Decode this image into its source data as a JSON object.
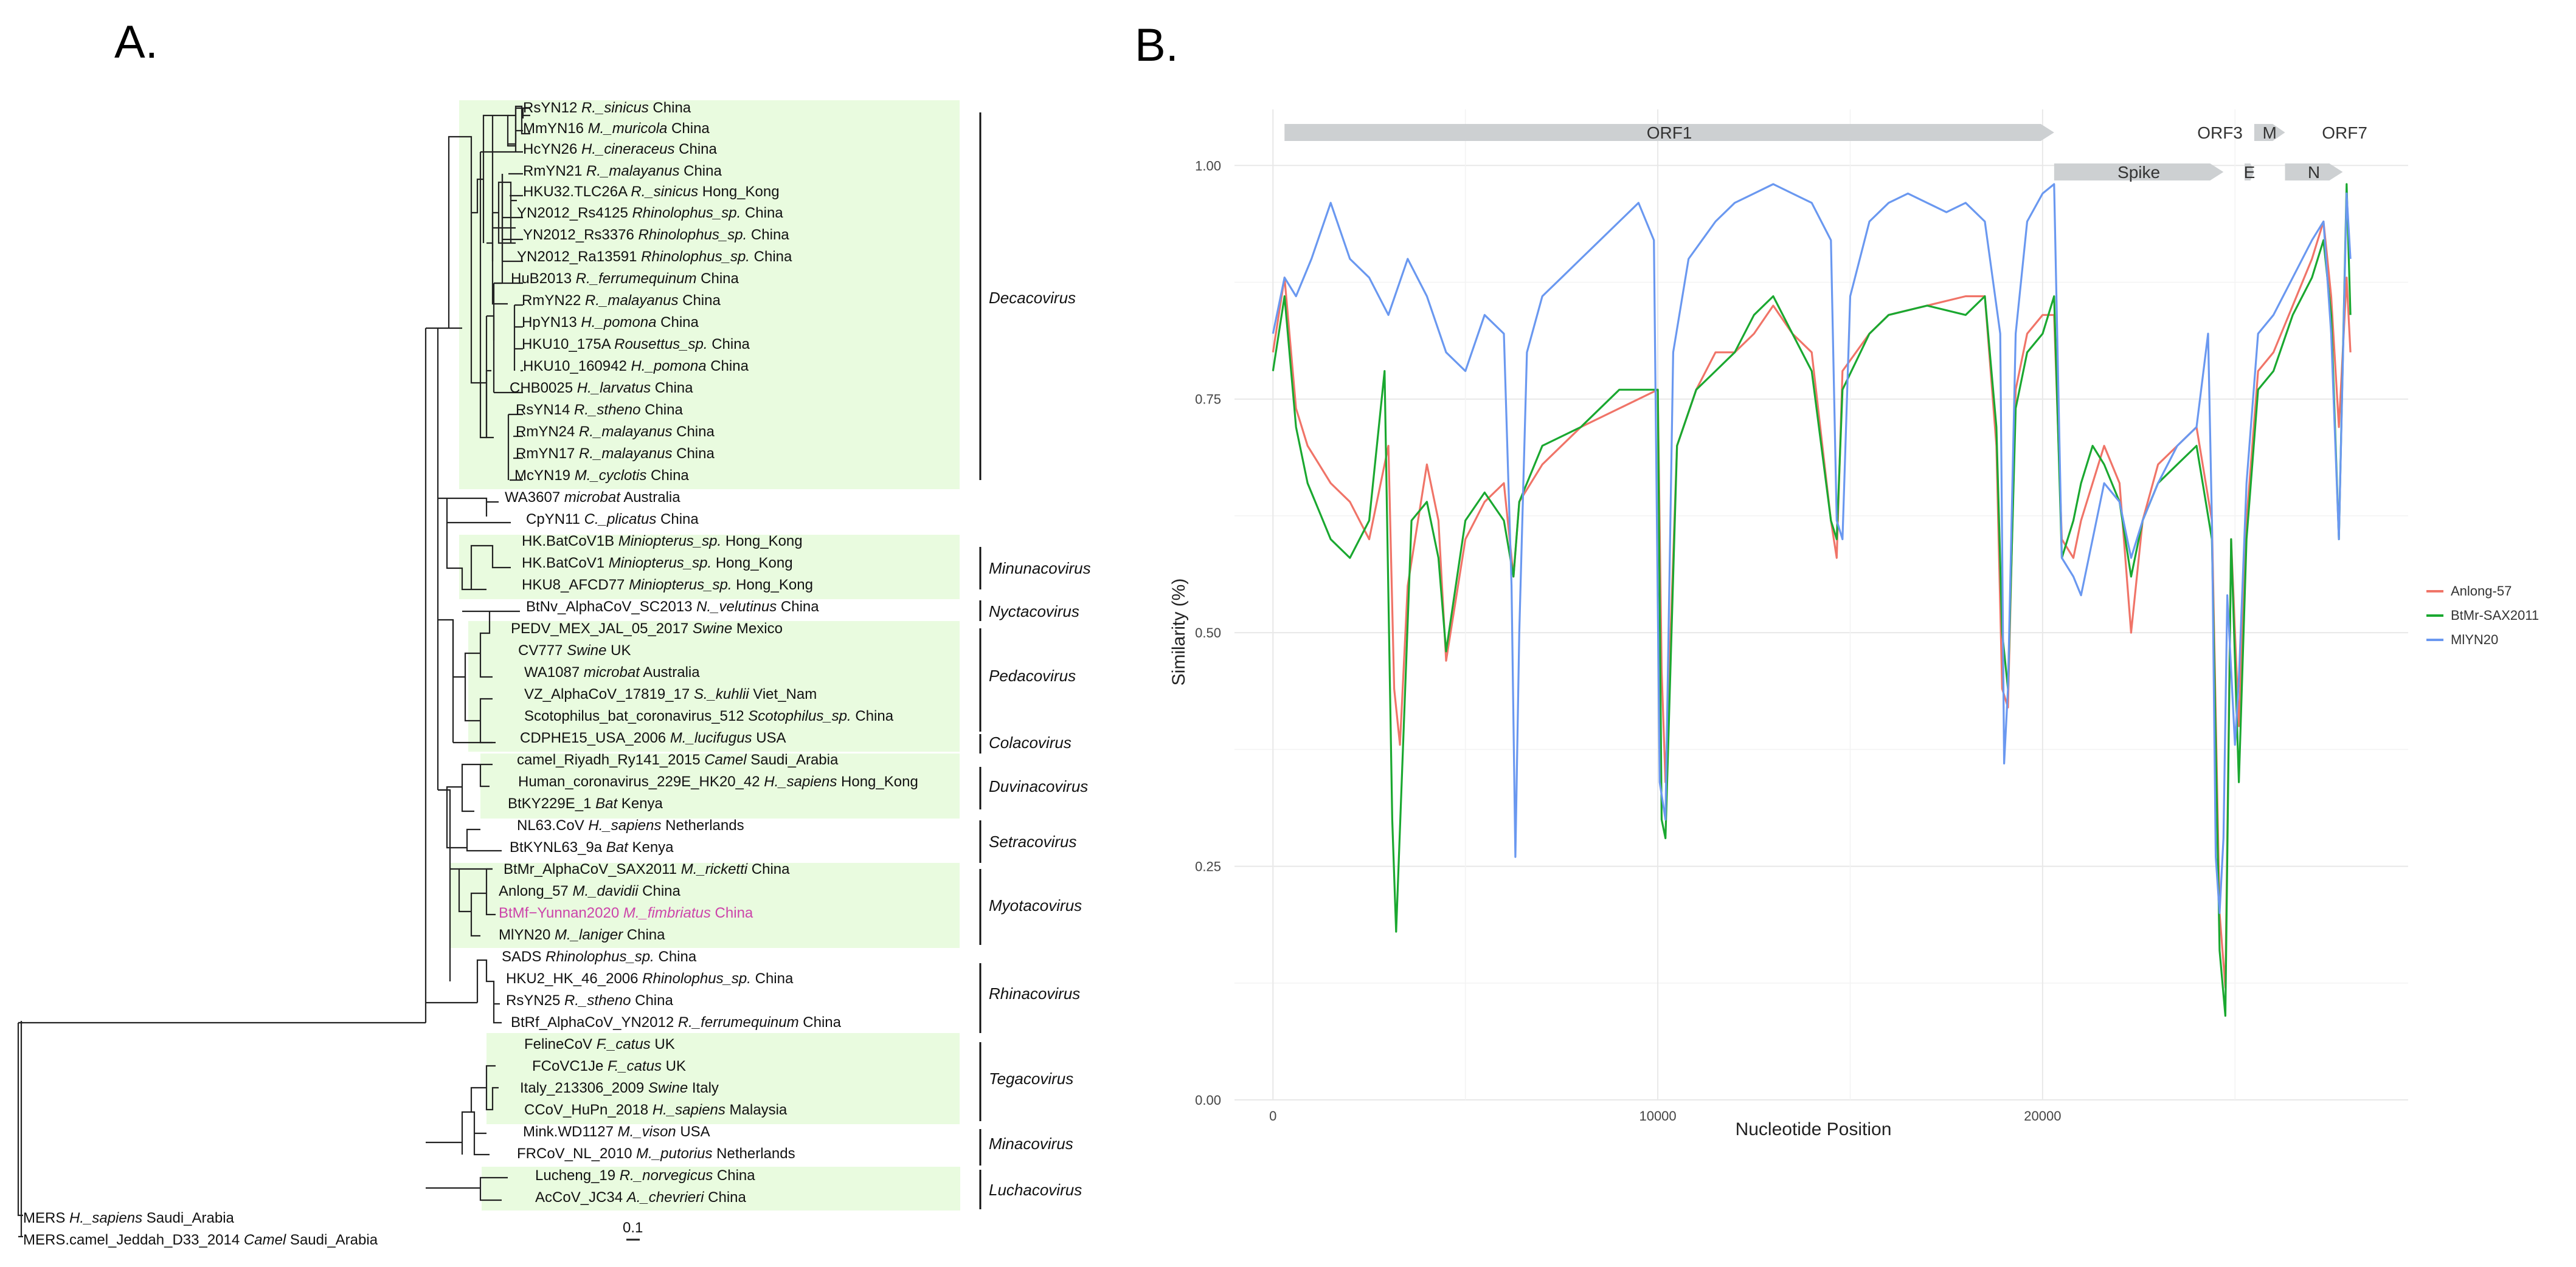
{
  "panel_labels": {
    "a": "A.",
    "b": "B."
  },
  "tree": {
    "scale_label": "0.1",
    "tips": [
      {
        "id": "rsyn12",
        "name": "RsYN12",
        "species": "R._sinicus",
        "loc": "China"
      },
      {
        "id": "mmyn16",
        "name": "MmYN16",
        "species": "M._muricola",
        "loc": "China"
      },
      {
        "id": "hcyn26",
        "name": "HcYN26",
        "species": "H._cineraceus",
        "loc": "China"
      },
      {
        "id": "rmyn21",
        "name": "RmYN21",
        "species": "R._malayanus",
        "loc": "China"
      },
      {
        "id": "hku32",
        "name": "HKU32.TLC26A",
        "species": "R._sinicus",
        "loc": "Hong_Kong"
      },
      {
        "id": "yn2012_rs4125",
        "name": "YN2012_Rs4125",
        "species": "Rhinolophus_sp.",
        "loc": "China"
      },
      {
        "id": "yn2012_rs3376",
        "name": "YN2012_Rs3376",
        "species": "Rhinolophus_sp.",
        "loc": "China"
      },
      {
        "id": "yn2012_ra13591",
        "name": "YN2012_Ra13591",
        "species": "Rhinolophus_sp.",
        "loc": "China"
      },
      {
        "id": "hub2013",
        "name": "HuB2013",
        "species": "R._ferrumequinum",
        "loc": "China"
      },
      {
        "id": "rmyn22",
        "name": "RmYN22",
        "species": "R._malayanus",
        "loc": "China"
      },
      {
        "id": "hpyn13",
        "name": "HpYN13",
        "species": "H._pomona",
        "loc": "China"
      },
      {
        "id": "hku10_175a",
        "name": "HKU10_175A",
        "species": "Rousettus_sp.",
        "loc": "China"
      },
      {
        "id": "hku10_160942",
        "name": "HKU10_160942",
        "species": "H._pomona",
        "loc": "China"
      },
      {
        "id": "chb0025",
        "name": "CHB0025",
        "species": "H._larvatus",
        "loc": "China"
      },
      {
        "id": "rsyn14",
        "name": "RsYN14",
        "species": "R._stheno",
        "loc": "China"
      },
      {
        "id": "rmyn24",
        "name": "RmYN24",
        "species": "R._malayanus",
        "loc": "China"
      },
      {
        "id": "rmyn17",
        "name": "RmYN17",
        "species": "R._malayanus",
        "loc": "China"
      },
      {
        "id": "mcyn19",
        "name": "McYN19",
        "species": "M._cyclotis",
        "loc": "China"
      },
      {
        "id": "wa3607",
        "name": "WA3607",
        "species": "microbat",
        "loc": "Australia"
      },
      {
        "id": "cpyn11",
        "name": "CpYN11",
        "species": "C._plicatus",
        "loc": "China"
      },
      {
        "id": "hkbat1b",
        "name": "HK.BatCoV1B",
        "species": "Miniopterus_sp.",
        "loc": "Hong_Kong"
      },
      {
        "id": "hkbat1",
        "name": "HK.BatCoV1",
        "species": "Miniopterus_sp.",
        "loc": "Hong_Kong"
      },
      {
        "id": "hku8",
        "name": "HKU8_AFCD77",
        "species": "Miniopterus_sp.",
        "loc": "Hong_Kong"
      },
      {
        "id": "btnv",
        "name": "BtNv_AlphaCoV_SC2013",
        "species": "N._velutinus",
        "loc": "China"
      },
      {
        "id": "pedv",
        "name": "PEDV_MEX_JAL_05_2017",
        "species": "Swine",
        "loc": "Mexico"
      },
      {
        "id": "cv777",
        "name": "CV777",
        "species": "Swine",
        "loc": "UK"
      },
      {
        "id": "wa1087",
        "name": "WA1087",
        "species": "microbat",
        "loc": "Australia"
      },
      {
        "id": "vz",
        "name": "VZ_AlphaCoV_17819_17",
        "species": "S._kuhlii",
        "loc": "Viet_Nam"
      },
      {
        "id": "scoto",
        "name": "Scotophilus_bat_coronavirus_512",
        "species": "Scotophilus_sp.",
        "loc": "China"
      },
      {
        "id": "cdphe15",
        "name": "CDPHE15_USA_2006",
        "species": "M._lucifugus",
        "loc": "USA"
      },
      {
        "id": "camel_riyadh",
        "name": "camel_Riyadh_Ry141_2015",
        "species": "Camel",
        "loc": "Saudi_Arabia"
      },
      {
        "id": "hcov229e",
        "name": "Human_coronavirus_229E_HK20_42",
        "species": "H._sapiens",
        "loc": "Hong_Kong"
      },
      {
        "id": "btky229e",
        "name": "BtKY229E_1",
        "species": "Bat",
        "loc": "Kenya"
      },
      {
        "id": "nl63",
        "name": "NL63.CoV",
        "species": "H._sapiens",
        "loc": "Netherlands"
      },
      {
        "id": "btkynl63",
        "name": "BtKYNL63_9a",
        "species": "Bat",
        "loc": "Kenya"
      },
      {
        "id": "btmr",
        "name": "BtMr_AlphaCoV_SAX2011",
        "species": "M._ricketti",
        "loc": "China"
      },
      {
        "id": "anlong57",
        "name": "Anlong_57",
        "species": "M._davidii",
        "loc": "China"
      },
      {
        "id": "btmf",
        "name": "BtMf−Yunnan2020",
        "species": "M._fimbriatus",
        "loc": "China",
        "highlight": true
      },
      {
        "id": "miyn20",
        "name": "MlYN20",
        "species": "M._laniger",
        "loc": "China"
      },
      {
        "id": "sads",
        "name": "SADS",
        "species": "Rhinolophus_sp.",
        "loc": "China"
      },
      {
        "id": "hku2",
        "name": "HKU2_HK_46_2006",
        "species": "Rhinolophus_sp.",
        "loc": "China"
      },
      {
        "id": "rsyn25",
        "name": "RsYN25",
        "species": "R._stheno",
        "loc": "China"
      },
      {
        "id": "btrf",
        "name": "BtRf_AlphaCoV_YN2012",
        "species": "R._ferrumequinum",
        "loc": "China"
      },
      {
        "id": "felinecov",
        "name": "FelineCoV",
        "species": "F._catus",
        "loc": "UK"
      },
      {
        "id": "fcovc1je",
        "name": "FCoVC1Je",
        "species": "F._catus",
        "loc": "UK"
      },
      {
        "id": "italy",
        "name": "Italy_213306_2009",
        "species": "Swine",
        "loc": "Italy"
      },
      {
        "id": "ccov",
        "name": "CCoV_HuPn_2018",
        "species": "H._sapiens",
        "loc": "Malaysia"
      },
      {
        "id": "mink",
        "name": "Mink.WD1127",
        "species": "M._vison",
        "loc": "USA"
      },
      {
        "id": "frcov",
        "name": "FRCoV_NL_2010",
        "species": "M._putorius",
        "loc": "Netherlands"
      },
      {
        "id": "lucheng",
        "name": "Lucheng_19",
        "species": "R._norvegicus",
        "loc": "China"
      },
      {
        "id": "accov",
        "name": "AcCoV_JC34",
        "species": "A._chevrieri",
        "loc": "China"
      },
      {
        "id": "mers_hs",
        "name": "MERS",
        "species": "H._sapiens",
        "loc": "Saudi_Arabia"
      },
      {
        "id": "mers_camel",
        "name": "MERS.camel_Jeddah_D33_2014",
        "species": "Camel",
        "loc": "Saudi_Arabia"
      }
    ],
    "genera": [
      {
        "id": "decacovirus",
        "label": "Decacovirus"
      },
      {
        "id": "minunacovirus",
        "label": "Minunacovirus"
      },
      {
        "id": "nyctacovirus",
        "label": "Nyctacovirus"
      },
      {
        "id": "pedacovirus",
        "label": "Pedacovirus"
      },
      {
        "id": "colacovirus",
        "label": "Colacovirus"
      },
      {
        "id": "duvinacovirus",
        "label": "Duvinacovirus"
      },
      {
        "id": "setracovirus",
        "label": "Setracovirus"
      },
      {
        "id": "myotacovirus",
        "label": "Myotacovirus"
      },
      {
        "id": "rhinacovirus",
        "label": "Rhinacovirus"
      },
      {
        "id": "tegacovirus",
        "label": "Tegacovirus"
      },
      {
        "id": "minacovirus",
        "label": "Minacovirus"
      },
      {
        "id": "luchacovirus",
        "label": "Luchacovirus"
      }
    ]
  },
  "genome_map": [
    {
      "id": "orf1",
      "label": "ORF1",
      "start": 300,
      "end": 20300
    },
    {
      "id": "spike",
      "label": "Spike",
      "start": 20300,
      "end": 24700
    },
    {
      "id": "orf3",
      "label": "ORF3",
      "start": 24700,
      "end": 25200
    },
    {
      "id": "e",
      "label": "E",
      "start": 25250,
      "end": 25500
    },
    {
      "id": "m",
      "label": "M",
      "start": 25500,
      "end": 26300
    },
    {
      "id": "n",
      "label": "N",
      "start": 26300,
      "end": 27800
    },
    {
      "id": "orf7",
      "label": "ORF7",
      "start": 27700,
      "end": 28000
    }
  ],
  "colors": {
    "anlong57": "#f07468",
    "btmr": "#1aa830",
    "miyn20": "#6a98f0",
    "highlight_band": "#e9fbdf",
    "gene_arrow": "#cdd0d2"
  },
  "chart_data": {
    "type": "line",
    "xlabel": "Nucleotide Position",
    "ylabel": "Similarity (%)",
    "xlim": [
      -1000,
      29500
    ],
    "ylim": [
      0,
      1.06
    ],
    "x_ticks": [
      {
        "v": 0,
        "label": "0"
      },
      {
        "v": 10000,
        "label": "10000"
      },
      {
        "v": 20000,
        "label": "20000"
      }
    ],
    "y_ticks": [
      {
        "v": 0,
        "label": "0.00"
      },
      {
        "v": 0.25,
        "label": "0.25"
      },
      {
        "v": 0.5,
        "label": "0.50"
      },
      {
        "v": 0.75,
        "label": "0.75"
      },
      {
        "v": 1,
        "label": "1.00"
      }
    ],
    "legend_position": "right",
    "series": [
      {
        "name": "Anlong-57",
        "color": "#f07468",
        "x": [
          0,
          300,
          600,
          900,
          1200,
          1500,
          2000,
          2500,
          3000,
          3150,
          3300,
          3500,
          4000,
          4300,
          4500,
          5000,
          5500,
          6000,
          6250,
          6400,
          7000,
          8000,
          9000,
          10000,
          10100,
          10200,
          10500,
          11000,
          11500,
          12000,
          12500,
          13000,
          13500,
          14000,
          14500,
          14650,
          14800,
          15500,
          16000,
          17000,
          18000,
          18500,
          18800,
          18950,
          19100,
          19300,
          19600,
          20000,
          20300,
          20500,
          20800,
          21000,
          21300,
          21600,
          22000,
          22300,
          22600,
          23000,
          23500,
          24000,
          24400,
          24600,
          24750,
          24900,
          25100,
          25300,
          25600,
          26000,
          26500,
          27000,
          27300,
          27500,
          27700,
          27900,
          28000
        ],
        "y": [
          0.8,
          0.88,
          0.74,
          0.7,
          0.68,
          0.66,
          0.64,
          0.6,
          0.7,
          0.44,
          0.38,
          0.55,
          0.68,
          0.62,
          0.47,
          0.6,
          0.64,
          0.66,
          0.56,
          0.64,
          0.68,
          0.72,
          0.74,
          0.76,
          0.46,
          0.34,
          0.7,
          0.76,
          0.8,
          0.8,
          0.82,
          0.85,
          0.82,
          0.8,
          0.62,
          0.58,
          0.78,
          0.82,
          0.84,
          0.85,
          0.86,
          0.86,
          0.7,
          0.44,
          0.42,
          0.76,
          0.82,
          0.84,
          0.84,
          0.6,
          0.58,
          0.62,
          0.66,
          0.7,
          0.66,
          0.5,
          0.62,
          0.68,
          0.7,
          0.72,
          0.62,
          0.2,
          0.12,
          0.6,
          0.4,
          0.62,
          0.78,
          0.8,
          0.85,
          0.9,
          0.94,
          0.86,
          0.72,
          0.88,
          0.8
        ]
      },
      {
        "name": "BtMr-SAX2011",
        "color": "#1aa830",
        "x": [
          0,
          300,
          600,
          900,
          1200,
          1500,
          2000,
          2500,
          2900,
          3100,
          3200,
          3400,
          3600,
          4000,
          4300,
          4500,
          5000,
          5500,
          6000,
          6250,
          6400,
          7000,
          8000,
          9000,
          10000,
          10100,
          10200,
          10500,
          11000,
          11500,
          12000,
          12500,
          13000,
          13500,
          14000,
          14500,
          14650,
          14800,
          15500,
          16000,
          17000,
          18000,
          18500,
          18800,
          18950,
          19100,
          19300,
          19600,
          20000,
          20300,
          20500,
          20800,
          21000,
          21300,
          21600,
          22000,
          22300,
          22600,
          23000,
          23500,
          24000,
          24400,
          24600,
          24750,
          24900,
          25100,
          25300,
          25600,
          26000,
          26500,
          27000,
          27300,
          27500,
          27700,
          27900,
          28000
        ],
        "y": [
          0.78,
          0.86,
          0.72,
          0.66,
          0.63,
          0.6,
          0.58,
          0.62,
          0.78,
          0.3,
          0.18,
          0.4,
          0.62,
          0.64,
          0.58,
          0.48,
          0.62,
          0.65,
          0.62,
          0.56,
          0.64,
          0.7,
          0.72,
          0.76,
          0.76,
          0.3,
          0.28,
          0.7,
          0.76,
          0.78,
          0.8,
          0.84,
          0.86,
          0.82,
          0.78,
          0.62,
          0.6,
          0.76,
          0.82,
          0.84,
          0.85,
          0.84,
          0.86,
          0.72,
          0.5,
          0.44,
          0.74,
          0.8,
          0.82,
          0.86,
          0.58,
          0.62,
          0.66,
          0.7,
          0.68,
          0.64,
          0.56,
          0.62,
          0.66,
          0.68,
          0.7,
          0.6,
          0.16,
          0.09,
          0.6,
          0.34,
          0.6,
          0.76,
          0.78,
          0.84,
          0.88,
          0.92,
          0.84,
          0.6,
          0.98,
          0.84
        ]
      },
      {
        "name": "MlYN20",
        "color": "#6a98f0",
        "x": [
          0,
          300,
          600,
          1000,
          1500,
          2000,
          2500,
          3000,
          3500,
          4000,
          4500,
          5000,
          5500,
          6000,
          6200,
          6300,
          6400,
          6600,
          7000,
          7500,
          8000,
          8500,
          9000,
          9500,
          9900,
          10050,
          10200,
          10400,
          10800,
          11500,
          12000,
          12500,
          13000,
          13500,
          14000,
          14500,
          14650,
          14800,
          15000,
          15500,
          16000,
          16500,
          17000,
          17500,
          18000,
          18500,
          18900,
          19000,
          19100,
          19300,
          19600,
          20000,
          20300,
          20500,
          20800,
          21000,
          21300,
          21600,
          22000,
          22300,
          22600,
          23000,
          23500,
          24000,
          24300,
          24400,
          24500,
          24600,
          24700,
          24800,
          25000,
          25100,
          25300,
          25600,
          26000,
          26500,
          27000,
          27300,
          27500,
          27700,
          27900,
          28000
        ],
        "y": [
          0.82,
          0.88,
          0.86,
          0.9,
          0.96,
          0.9,
          0.88,
          0.84,
          0.9,
          0.86,
          0.8,
          0.78,
          0.84,
          0.82,
          0.55,
          0.26,
          0.5,
          0.8,
          0.86,
          0.88,
          0.9,
          0.92,
          0.94,
          0.96,
          0.92,
          0.34,
          0.3,
          0.8,
          0.9,
          0.94,
          0.96,
          0.97,
          0.98,
          0.97,
          0.96,
          0.92,
          0.62,
          0.6,
          0.86,
          0.94,
          0.96,
          0.97,
          0.96,
          0.95,
          0.96,
          0.94,
          0.82,
          0.36,
          0.44,
          0.82,
          0.94,
          0.97,
          0.98,
          0.58,
          0.56,
          0.54,
          0.6,
          0.66,
          0.64,
          0.58,
          0.62,
          0.66,
          0.7,
          0.72,
          0.82,
          0.62,
          0.26,
          0.2,
          0.28,
          0.54,
          0.38,
          0.45,
          0.66,
          0.82,
          0.84,
          0.88,
          0.92,
          0.94,
          0.82,
          0.6,
          0.97,
          0.9
        ]
      }
    ]
  }
}
